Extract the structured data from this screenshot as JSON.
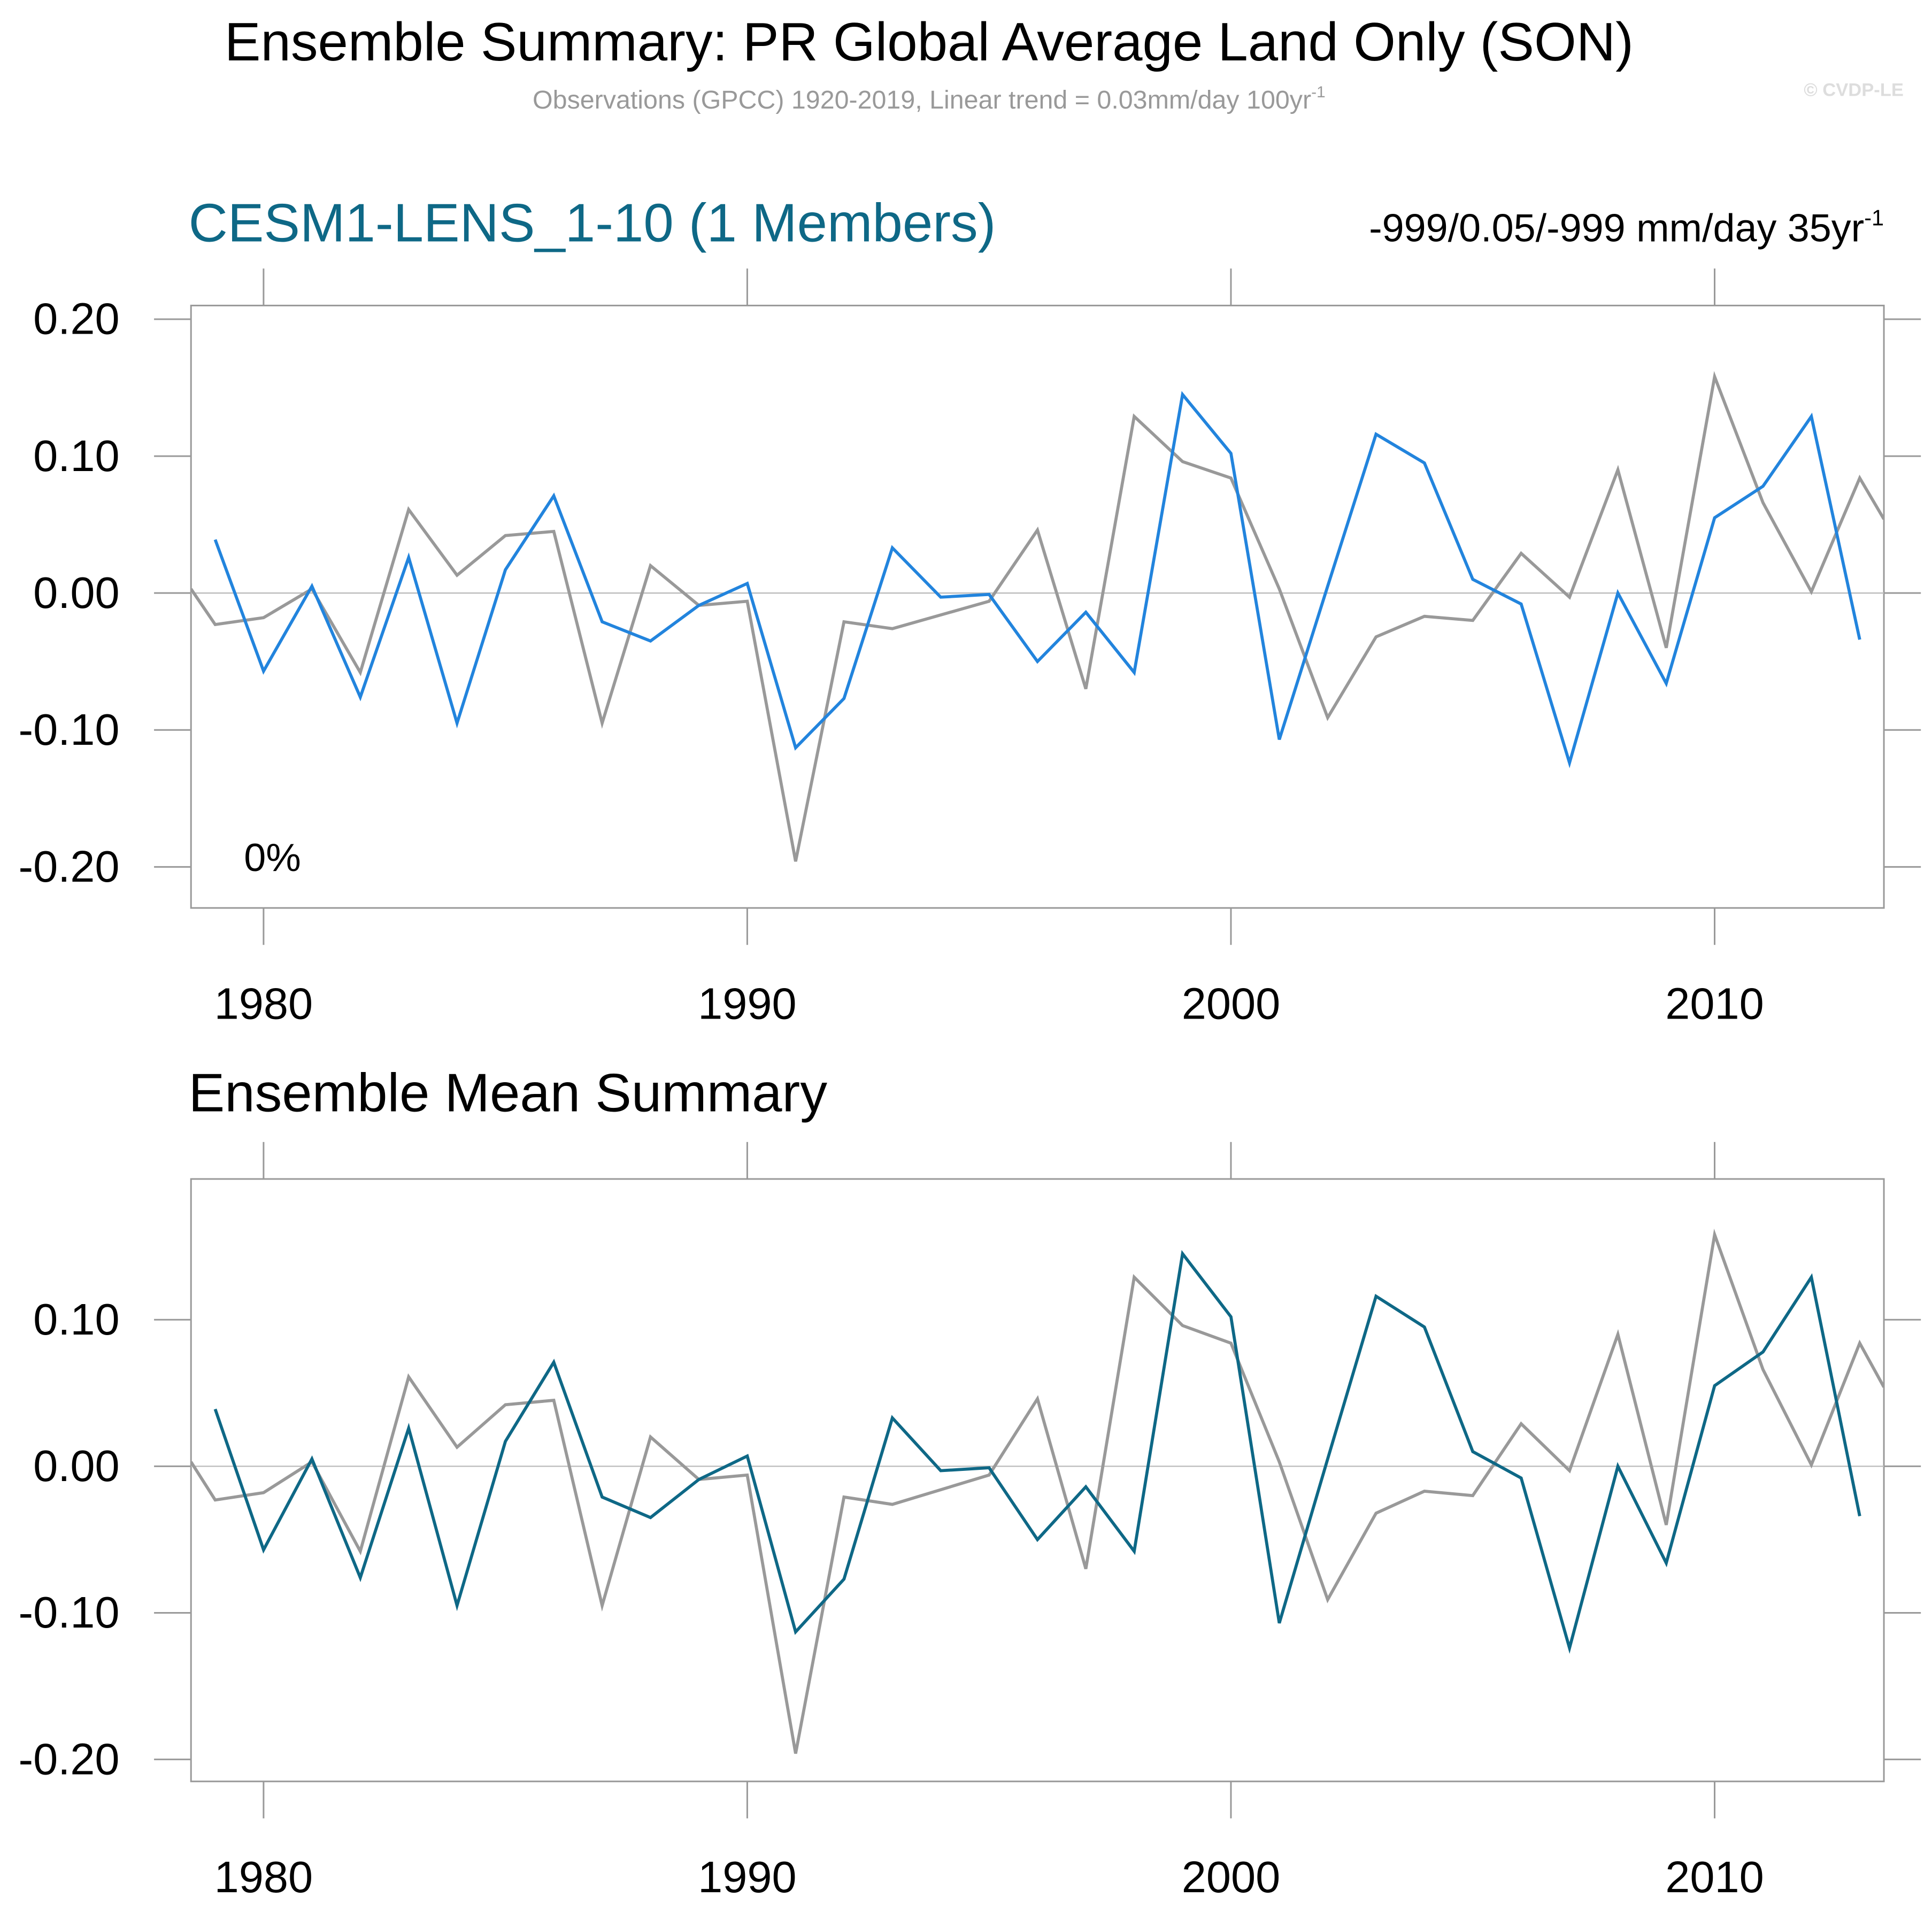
{
  "header": {
    "title": "Ensemble Summary: PR Global Average Land Only (SON)",
    "subtitle": "Observations (GPCC) 1920-2019, Linear trend = 0.03mm/day 100yr",
    "subtitle_sup": "-1",
    "credit": "© CVDP-LE"
  },
  "chart_data": [
    {
      "type": "line",
      "title": "CESM1-LENS_1-10 (1 Members)",
      "title_color": "#0e6886",
      "trend_label": "-999/0.05/-999 mm/day 35yr",
      "trend_label_sup": "-1",
      "annotation": "0%",
      "xlim": [
        1978.5,
        2013.5
      ],
      "xticks": [
        1980,
        1990,
        2000,
        2010
      ],
      "ylim": [
        -0.23,
        0.21
      ],
      "yticks": [
        {
          "value": 0.2,
          "label": "0.20"
        },
        {
          "value": 0.1,
          "label": "0.10"
        },
        {
          "value": 0,
          "label": "0.00"
        },
        {
          "value": -0.1,
          "label": "-0.10"
        },
        {
          "value": -0.2,
          "label": "-0.20"
        }
      ],
      "zero_line": true,
      "series": [
        {
          "color": "#999999",
          "x": [
            1978.5,
            1979,
            1980,
            1981,
            1982,
            1983,
            1984,
            1985,
            1986,
            1987,
            1988,
            1989,
            1990,
            1991,
            1992,
            1993,
            1994,
            1995,
            1996,
            1997,
            1998,
            1999,
            2000,
            2001,
            2002,
            2003,
            2004,
            2005,
            2006,
            2007,
            2008,
            2009,
            2010,
            2011,
            2012,
            2013,
            2013.5
          ],
          "values": [
            0.003,
            -0.023,
            -0.018,
            0.003,
            -0.058,
            0.061,
            0.013,
            0.042,
            0.045,
            -0.095,
            0.02,
            -0.009,
            -0.006,
            -0.196,
            -0.021,
            -0.026,
            -0.016,
            -0.006,
            0.046,
            -0.07,
            0.129,
            0.096,
            0.084,
            0.003,
            -0.091,
            -0.032,
            -0.017,
            -0.02,
            0.029,
            -0.003,
            0.09,
            -0.04,
            0.158,
            0.066,
            0.001,
            0.084,
            0.054
          ]
        },
        {
          "color": "#2284dd",
          "x": [
            1979,
            1980,
            1981,
            1982,
            1983,
            1984,
            1985,
            1986,
            1987,
            1988,
            1989,
            1990,
            1991,
            1992,
            1993,
            1994,
            1995,
            1996,
            1997,
            1998,
            1999,
            2000,
            2001,
            2002,
            2003,
            2004,
            2005,
            2006,
            2007,
            2008,
            2009,
            2010,
            2011,
            2012,
            2013
          ],
          "values": [
            0.039,
            -0.057,
            0.005,
            -0.076,
            0.026,
            -0.095,
            0.017,
            0.071,
            -0.021,
            -0.035,
            -0.009,
            0.007,
            -0.113,
            -0.077,
            0.033,
            -0.003,
            -0.001,
            -0.05,
            -0.014,
            -0.058,
            0.145,
            0.102,
            -0.107,
            0.005,
            0.116,
            0.095,
            0.01,
            -0.008,
            -0.124,
            0.0,
            -0.066,
            0.055,
            0.078,
            0.129,
            -0.034
          ]
        }
      ]
    },
    {
      "type": "line",
      "title": "Ensemble Mean Summary",
      "title_color": "#000000",
      "xlim": [
        1978.5,
        2013.5
      ],
      "xticks": [
        1980,
        1990,
        2000,
        2010
      ],
      "ylim": [
        -0.215,
        0.196
      ],
      "yticks": [
        {
          "value": 0.1,
          "label": "0.10"
        },
        {
          "value": 0,
          "label": "0.00"
        },
        {
          "value": -0.1,
          "label": "-0.10"
        },
        {
          "value": -0.2,
          "label": "-0.20"
        }
      ],
      "zero_line": true,
      "series": [
        {
          "color": "#999999",
          "x": [
            1978.5,
            1979,
            1980,
            1981,
            1982,
            1983,
            1984,
            1985,
            1986,
            1987,
            1988,
            1989,
            1990,
            1991,
            1992,
            1993,
            1994,
            1995,
            1996,
            1997,
            1998,
            1999,
            2000,
            2001,
            2002,
            2003,
            2004,
            2005,
            2006,
            2007,
            2008,
            2009,
            2010,
            2011,
            2012,
            2013,
            2013.5
          ],
          "values": [
            0.003,
            -0.023,
            -0.018,
            0.003,
            -0.058,
            0.061,
            0.013,
            0.042,
            0.045,
            -0.095,
            0.02,
            -0.009,
            -0.006,
            -0.196,
            -0.021,
            -0.026,
            -0.016,
            -0.006,
            0.046,
            -0.07,
            0.129,
            0.096,
            0.084,
            0.003,
            -0.091,
            -0.032,
            -0.017,
            -0.02,
            0.029,
            -0.003,
            0.09,
            -0.04,
            0.158,
            0.066,
            0.001,
            0.084,
            0.054
          ]
        },
        {
          "color": "#0e6886",
          "x": [
            1979,
            1980,
            1981,
            1982,
            1983,
            1984,
            1985,
            1986,
            1987,
            1988,
            1989,
            1990,
            1991,
            1992,
            1993,
            1994,
            1995,
            1996,
            1997,
            1998,
            1999,
            2000,
            2001,
            2002,
            2003,
            2004,
            2005,
            2006,
            2007,
            2008,
            2009,
            2010,
            2011,
            2012,
            2013
          ],
          "values": [
            0.039,
            -0.057,
            0.005,
            -0.076,
            0.026,
            -0.095,
            0.017,
            0.071,
            -0.021,
            -0.035,
            -0.009,
            0.007,
            -0.113,
            -0.077,
            0.033,
            -0.003,
            -0.001,
            -0.05,
            -0.014,
            -0.058,
            0.145,
            0.102,
            -0.107,
            0.005,
            0.116,
            0.095,
            0.01,
            -0.008,
            -0.124,
            0.0,
            -0.066,
            0.055,
            0.078,
            0.129,
            -0.034
          ]
        }
      ]
    }
  ]
}
